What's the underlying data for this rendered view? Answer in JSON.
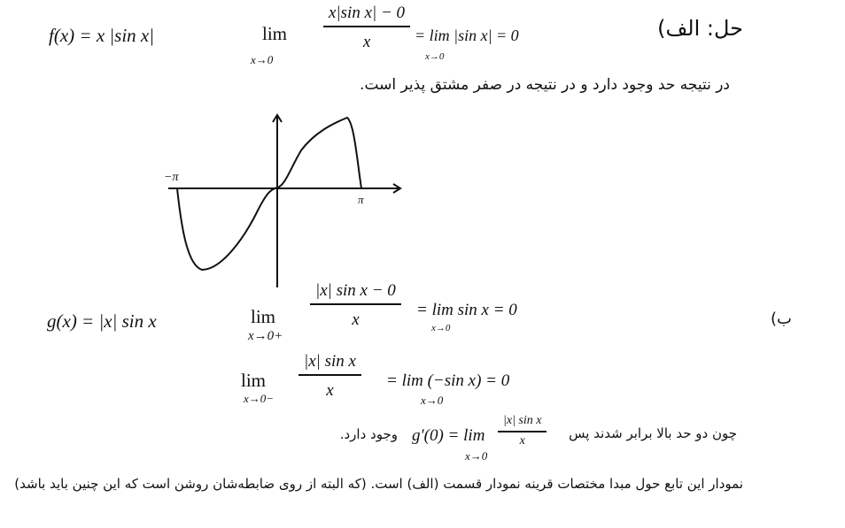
{
  "part_a": {
    "label": "حل: الف)",
    "function": "f(x) = x |sin x|",
    "lim": "lim",
    "lim_sub": "x→0",
    "numerator": "x|sin x| − 0",
    "denominator": "x",
    "result": "= lim |sin x| = 0",
    "result_sub": "x→0",
    "conclusion": "در نتیجه حد وجود دارد و در نتیجه در صفر مشتق پذیر است."
  },
  "graph": {
    "neg_pi_label": "−π",
    "pi_label": "π"
  },
  "part_b": {
    "label": "ب)",
    "function": "g(x) = |x| sin x",
    "right_lim": "lim",
    "right_lim_sub": "x→0+",
    "right_numerator": "|x| sin x − 0",
    "right_denominator": "x",
    "right_result": "= lim sin x = 0",
    "right_result_sub": "x→0",
    "left_lim": "lim",
    "left_lim_sub": "x→0−",
    "left_numerator": "|x| sin x",
    "left_denominator": "x",
    "left_result": "= lim (−sin x) = 0",
    "left_result_sub": "x→0",
    "since_text": "چون دو حد بالا برابر شدند پس",
    "derivative": "g′(0) = lim",
    "derivative_sub": "x→0",
    "derivative_numerator": "|x| sin x",
    "derivative_denominator": "x",
    "exists_text": "وجود دارد.",
    "final_note": "نمودار این تابع حول مبدا مختصات قرینه نمودار قسمت (الف) است. (که البته از روی ضابطه‌شان روشن است که این چنین باید باشد)"
  }
}
